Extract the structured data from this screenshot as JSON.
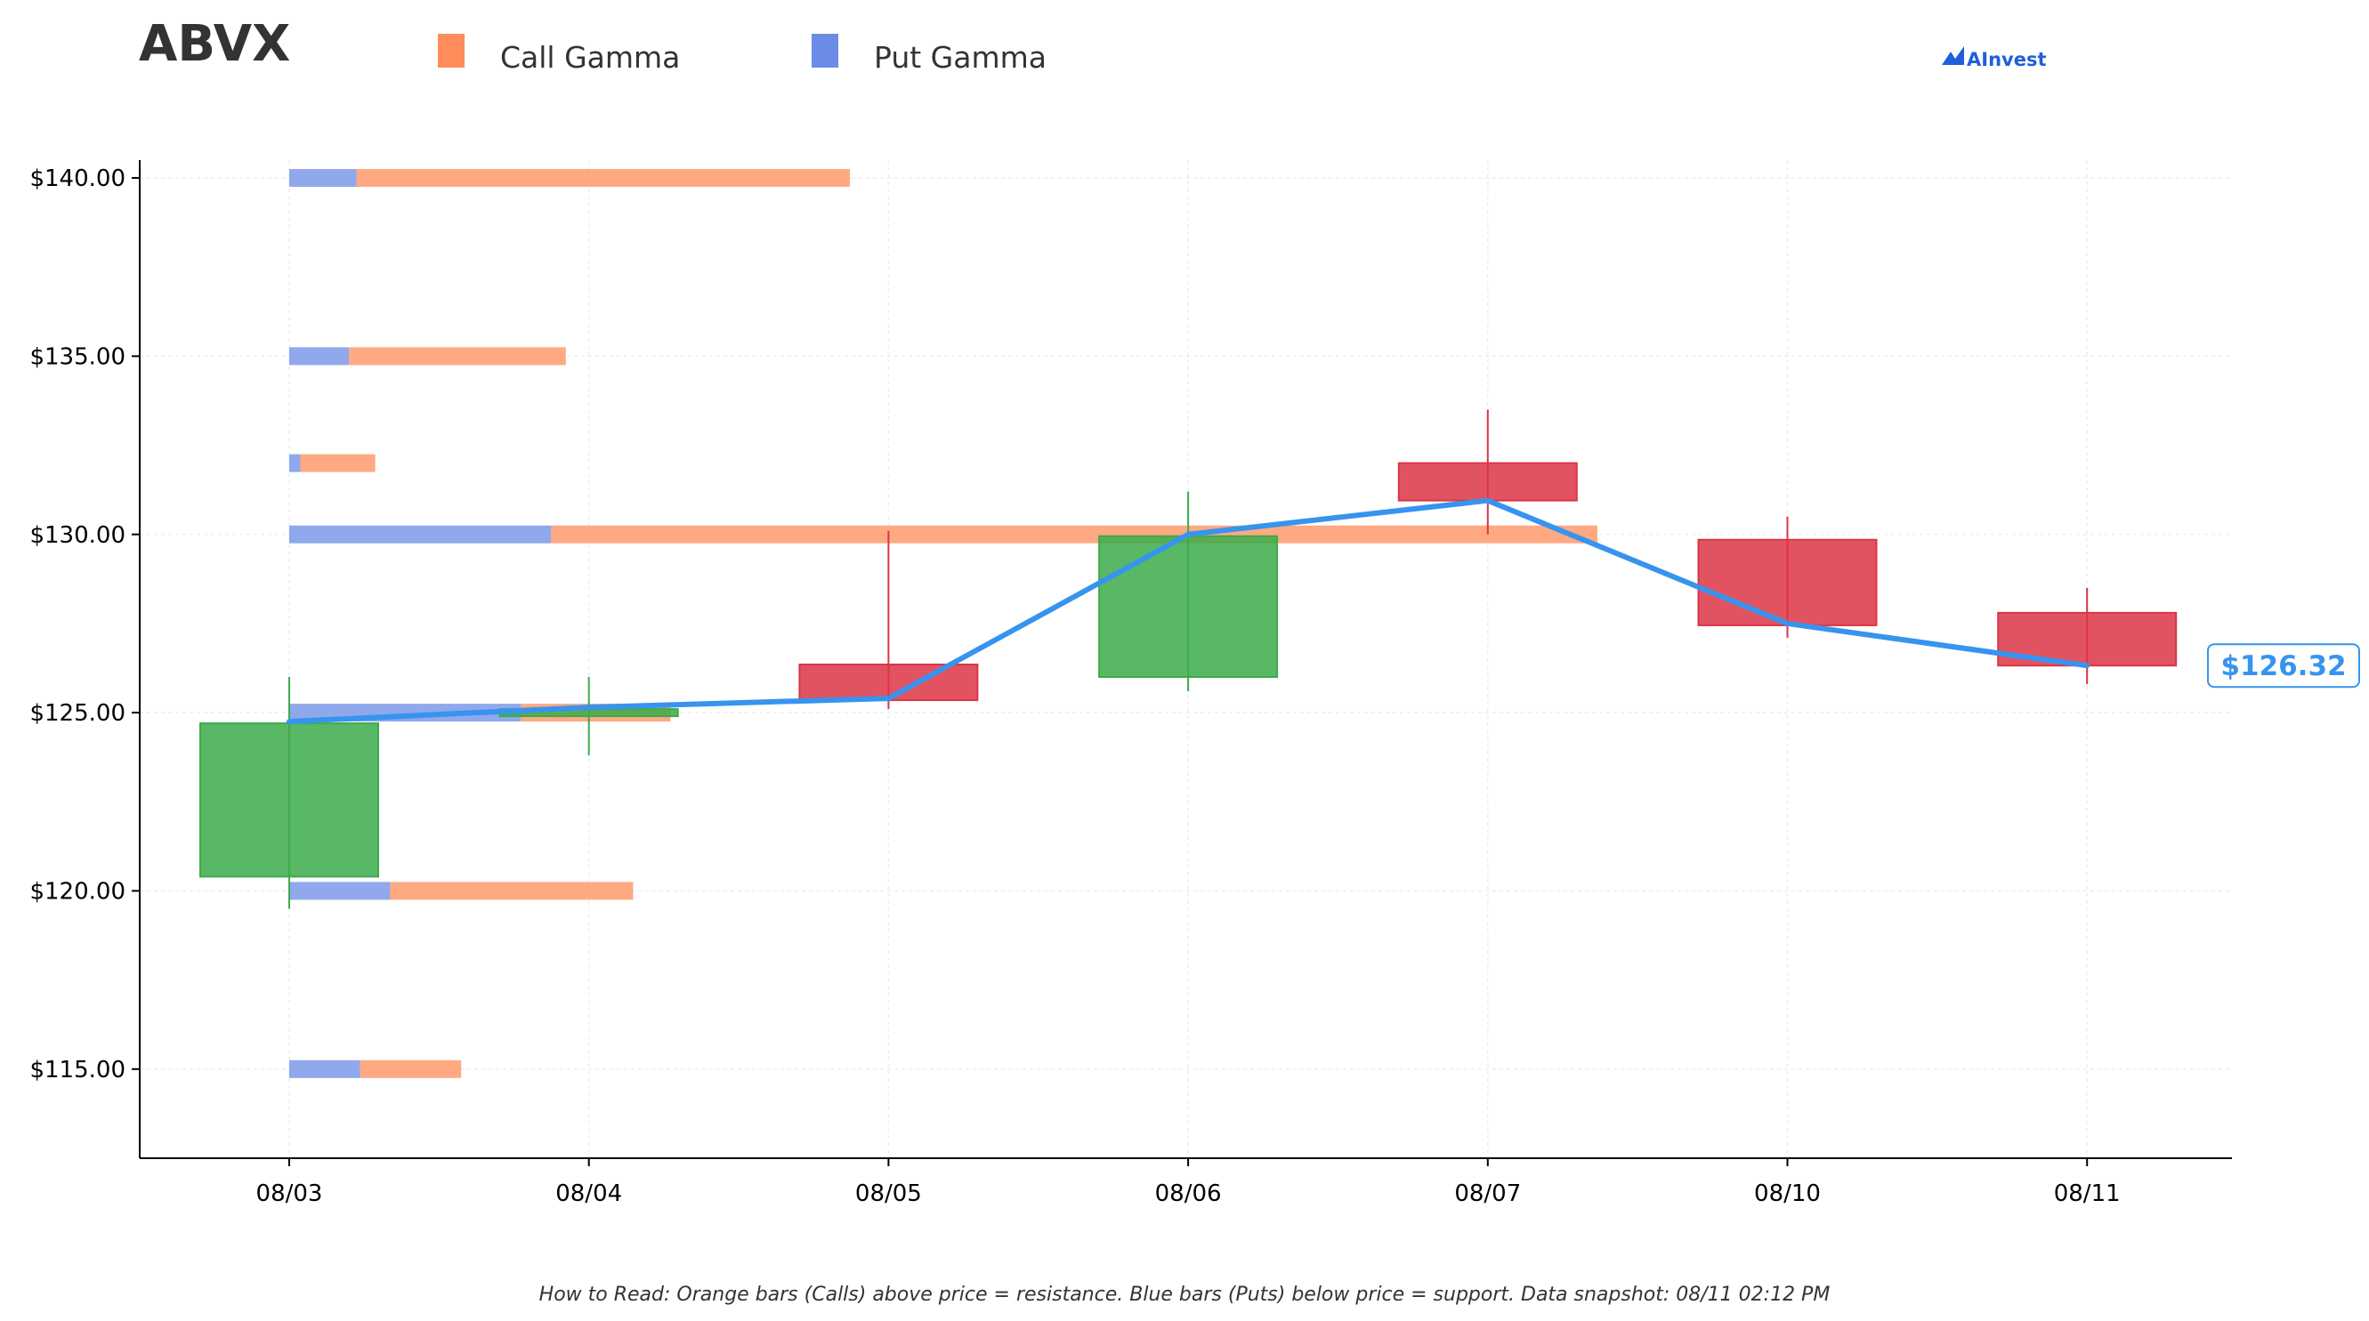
{
  "chart_data": {
    "type": "candlestick",
    "title": "ABVX",
    "legend": {
      "placement": "top",
      "entries": [
        {
          "name": "Call Gamma",
          "color": "#ff8c5a"
        },
        {
          "name": "Put Gamma",
          "color": "#6b8be6"
        }
      ]
    },
    "brand": "AInvest",
    "categories": [
      "08/03",
      "08/04",
      "08/05",
      "08/06",
      "08/07",
      "08/10",
      "08/11"
    ],
    "ohlc": [
      {
        "date": "08/03",
        "open": 120.4,
        "high": 126.0,
        "low": 119.5,
        "close": 124.7
      },
      {
        "date": "08/04",
        "open": 124.9,
        "high": 126.0,
        "low": 123.8,
        "close": 125.1
      },
      {
        "date": "08/05",
        "open": 126.35,
        "high": 130.1,
        "low": 125.1,
        "close": 125.35
      },
      {
        "date": "08/06",
        "open": 126.0,
        "high": 131.2,
        "low": 125.6,
        "close": 129.95
      },
      {
        "date": "08/07",
        "open": 132.0,
        "high": 133.5,
        "low": 130.0,
        "close": 130.95
      },
      {
        "date": "08/10",
        "open": 129.85,
        "high": 130.5,
        "low": 127.1,
        "close": 127.45
      },
      {
        "date": "08/11",
        "open": 127.8,
        "high": 128.5,
        "low": 125.8,
        "close": 126.32
      }
    ],
    "close_line": [
      124.75,
      125.15,
      125.4,
      130.0,
      130.95,
      127.5,
      126.32
    ],
    "last_price_label": "$126.32",
    "gamma_levels": [
      {
        "strike": 140.0,
        "put": 0.18,
        "call": 1.32
      },
      {
        "strike": 135.0,
        "put": 0.16,
        "call": 0.58
      },
      {
        "strike": 132.0,
        "put": 0.03,
        "call": 0.2
      },
      {
        "strike": 130.0,
        "put": 0.7,
        "call": 2.8
      },
      {
        "strike": 125.0,
        "put": 0.62,
        "call": 0.4
      },
      {
        "strike": 120.0,
        "put": 0.27,
        "call": 0.65
      },
      {
        "strike": 115.0,
        "put": 0.19,
        "call": 0.27
      }
    ],
    "y_ticks": [
      "$115.00",
      "$120.00",
      "$125.00",
      "$130.00",
      "$135.00",
      "$140.00"
    ],
    "y_tick_values": [
      115,
      120,
      125,
      130,
      135,
      140
    ],
    "ylim": [
      112.5,
      140.5
    ],
    "grid": true,
    "colors": {
      "up": "#3cab4a",
      "down": "#dc3545",
      "line": "#3794ee",
      "call": "#ff8c5a",
      "put": "#6b8be6"
    },
    "footnote": "How to Read: Orange bars (Calls) above price = resistance. Blue bars (Puts) below price = support. Data snapshot: 08/11 02:12 PM"
  }
}
